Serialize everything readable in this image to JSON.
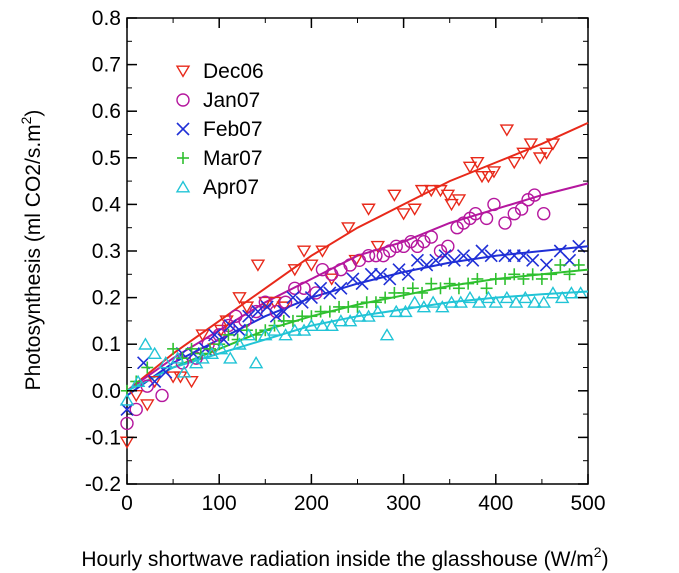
{
  "chart_data": {
    "type": "scatter",
    "title": "",
    "xlabel": "Hourly shortwave radiation inside the glasshouse (W/m",
    "xlabel_sup": "2",
    "xlabel_tail": ")",
    "ylabel": "Photosynthesis (ml CO2/s.m",
    "ylabel_sup": "2",
    "ylabel_tail": ")",
    "xlim": [
      0,
      500
    ],
    "ylim": [
      -0.2,
      0.8
    ],
    "x_ticks": [
      0,
      100,
      200,
      300,
      400,
      500
    ],
    "x_tick_labels": [
      "0",
      "100",
      "200",
      "300",
      "400",
      "500"
    ],
    "y_ticks": [
      -0.2,
      -0.1,
      0.0,
      0.1,
      0.2,
      0.3,
      0.4,
      0.5,
      0.6,
      0.7,
      0.8
    ],
    "y_tick_labels": [
      "-0.2",
      "-0.1",
      "0.0",
      "0.1",
      "0.2",
      "0.3",
      "0.4",
      "0.5",
      "0.6",
      "0.7",
      "0.8"
    ],
    "grid": false,
    "legend_position": "top-left",
    "series": [
      {
        "name": "Dec06",
        "marker": "triangle-down",
        "color": "#e8291a",
        "points": [
          [
            0,
            -0.11
          ],
          [
            10,
            -0.01
          ],
          [
            22,
            -0.03
          ],
          [
            30,
            0.02
          ],
          [
            50,
            0.03
          ],
          [
            58,
            0.03
          ],
          [
            70,
            0.02
          ],
          [
            82,
            0.12
          ],
          [
            95,
            0.09
          ],
          [
            102,
            0.13
          ],
          [
            108,
            0.15
          ],
          [
            122,
            0.2
          ],
          [
            130,
            0.18
          ],
          [
            142,
            0.27
          ],
          [
            150,
            0.19
          ],
          [
            160,
            0.19
          ],
          [
            170,
            0.18
          ],
          [
            182,
            0.26
          ],
          [
            192,
            0.3
          ],
          [
            200,
            0.27
          ],
          [
            212,
            0.3
          ],
          [
            222,
            0.24
          ],
          [
            240,
            0.35
          ],
          [
            248,
            0.28
          ],
          [
            262,
            0.39
          ],
          [
            272,
            0.31
          ],
          [
            290,
            0.42
          ],
          [
            300,
            0.38
          ],
          [
            312,
            0.39
          ],
          [
            320,
            0.43
          ],
          [
            330,
            0.43
          ],
          [
            340,
            0.43
          ],
          [
            348,
            0.42
          ],
          [
            352,
            0.4
          ],
          [
            360,
            0.41
          ],
          [
            372,
            0.48
          ],
          [
            380,
            0.49
          ],
          [
            385,
            0.46
          ],
          [
            392,
            0.46
          ],
          [
            398,
            0.47
          ],
          [
            412,
            0.56
          ],
          [
            420,
            0.49
          ],
          [
            430,
            0.51
          ],
          [
            438,
            0.53
          ],
          [
            448,
            0.5
          ],
          [
            455,
            0.51
          ],
          [
            462,
            0.53
          ]
        ]
      },
      {
        "name": "Jan07",
        "marker": "circle",
        "color": "#b5179e",
        "points": [
          [
            0,
            -0.07
          ],
          [
            10,
            -0.04
          ],
          [
            22,
            0.01
          ],
          [
            38,
            -0.01
          ],
          [
            60,
            0.06
          ],
          [
            75,
            0.07
          ],
          [
            88,
            0.1
          ],
          [
            100,
            0.12
          ],
          [
            110,
            0.14
          ],
          [
            118,
            0.16
          ],
          [
            128,
            0.15
          ],
          [
            140,
            0.17
          ],
          [
            150,
            0.19
          ],
          [
            162,
            0.17
          ],
          [
            172,
            0.19
          ],
          [
            182,
            0.22
          ],
          [
            192,
            0.22
          ],
          [
            205,
            0.21
          ],
          [
            212,
            0.26
          ],
          [
            222,
            0.25
          ],
          [
            232,
            0.26
          ],
          [
            242,
            0.27
          ],
          [
            252,
            0.28
          ],
          [
            262,
            0.29
          ],
          [
            270,
            0.29
          ],
          [
            278,
            0.29
          ],
          [
            285,
            0.3
          ],
          [
            292,
            0.31
          ],
          [
            300,
            0.31
          ],
          [
            308,
            0.32
          ],
          [
            315,
            0.31
          ],
          [
            322,
            0.32
          ],
          [
            330,
            0.33
          ],
          [
            340,
            0.3
          ],
          [
            348,
            0.31
          ],
          [
            358,
            0.35
          ],
          [
            365,
            0.36
          ],
          [
            372,
            0.37
          ],
          [
            378,
            0.38
          ],
          [
            390,
            0.37
          ],
          [
            398,
            0.4
          ],
          [
            410,
            0.36
          ],
          [
            420,
            0.38
          ],
          [
            428,
            0.39
          ],
          [
            435,
            0.41
          ],
          [
            442,
            0.42
          ],
          [
            452,
            0.38
          ]
        ]
      },
      {
        "name": "Feb07",
        "marker": "x",
        "color": "#1f2fd6",
        "points": [
          [
            0,
            -0.04
          ],
          [
            18,
            0.06
          ],
          [
            30,
            0.02
          ],
          [
            42,
            0.04
          ],
          [
            60,
            0.08
          ],
          [
            72,
            0.08
          ],
          [
            85,
            0.09
          ],
          [
            95,
            0.12
          ],
          [
            105,
            0.11
          ],
          [
            112,
            0.14
          ],
          [
            122,
            0.13
          ],
          [
            132,
            0.16
          ],
          [
            142,
            0.17
          ],
          [
            152,
            0.18
          ],
          [
            162,
            0.16
          ],
          [
            170,
            0.17
          ],
          [
            180,
            0.2
          ],
          [
            190,
            0.19
          ],
          [
            200,
            0.2
          ],
          [
            210,
            0.22
          ],
          [
            220,
            0.21
          ],
          [
            232,
            0.22
          ],
          [
            245,
            0.24
          ],
          [
            255,
            0.23
          ],
          [
            265,
            0.25
          ],
          [
            275,
            0.25
          ],
          [
            285,
            0.24
          ],
          [
            295,
            0.26
          ],
          [
            305,
            0.25
          ],
          [
            315,
            0.28
          ],
          [
            325,
            0.27
          ],
          [
            335,
            0.28
          ],
          [
            345,
            0.29
          ],
          [
            355,
            0.28
          ],
          [
            365,
            0.29
          ],
          [
            375,
            0.28
          ],
          [
            385,
            0.3
          ],
          [
            395,
            0.29
          ],
          [
            410,
            0.29
          ],
          [
            420,
            0.29
          ],
          [
            430,
            0.29
          ],
          [
            440,
            0.28
          ],
          [
            455,
            0.27
          ],
          [
            470,
            0.3
          ],
          [
            480,
            0.28
          ],
          [
            490,
            0.31
          ]
        ]
      },
      {
        "name": "Mar07",
        "marker": "plus",
        "color": "#2fc02f",
        "points": [
          [
            0,
            0.0
          ],
          [
            10,
            0.02
          ],
          [
            22,
            0.05
          ],
          [
            50,
            0.09
          ],
          [
            60,
            0.07
          ],
          [
            70,
            0.09
          ],
          [
            80,
            0.08
          ],
          [
            90,
            0.09
          ],
          [
            100,
            0.1
          ],
          [
            110,
            0.12
          ],
          [
            120,
            0.11
          ],
          [
            130,
            0.13
          ],
          [
            140,
            0.12
          ],
          [
            150,
            0.13
          ],
          [
            160,
            0.14
          ],
          [
            170,
            0.15
          ],
          [
            180,
            0.15
          ],
          [
            190,
            0.16
          ],
          [
            200,
            0.16
          ],
          [
            210,
            0.17
          ],
          [
            220,
            0.17
          ],
          [
            230,
            0.18
          ],
          [
            240,
            0.18
          ],
          [
            250,
            0.18
          ],
          [
            260,
            0.19
          ],
          [
            270,
            0.19
          ],
          [
            280,
            0.2
          ],
          [
            290,
            0.21
          ],
          [
            300,
            0.21
          ],
          [
            310,
            0.22
          ],
          [
            320,
            0.21
          ],
          [
            330,
            0.23
          ],
          [
            340,
            0.22
          ],
          [
            350,
            0.23
          ],
          [
            360,
            0.22
          ],
          [
            370,
            0.23
          ],
          [
            380,
            0.24
          ],
          [
            390,
            0.22
          ],
          [
            400,
            0.24
          ],
          [
            410,
            0.24
          ],
          [
            420,
            0.25
          ],
          [
            430,
            0.24
          ],
          [
            440,
            0.25
          ],
          [
            450,
            0.24
          ],
          [
            460,
            0.25
          ],
          [
            470,
            0.27
          ],
          [
            480,
            0.25
          ],
          [
            490,
            0.27
          ]
        ]
      },
      {
        "name": "Apr07",
        "marker": "triangle-up",
        "color": "#21c4d6",
        "points": [
          [
            0,
            -0.02
          ],
          [
            12,
            0.02
          ],
          [
            20,
            0.1
          ],
          [
            30,
            0.08
          ],
          [
            42,
            0.06
          ],
          [
            55,
            0.07
          ],
          [
            62,
            0.04
          ],
          [
            75,
            0.06
          ],
          [
            82,
            0.07
          ],
          [
            92,
            0.08
          ],
          [
            102,
            0.09
          ],
          [
            112,
            0.07
          ],
          [
            122,
            0.1
          ],
          [
            132,
            0.12
          ],
          [
            140,
            0.06
          ],
          [
            150,
            0.12
          ],
          [
            160,
            0.13
          ],
          [
            172,
            0.12
          ],
          [
            182,
            0.13
          ],
          [
            192,
            0.13
          ],
          [
            200,
            0.14
          ],
          [
            212,
            0.14
          ],
          [
            222,
            0.14
          ],
          [
            232,
            0.15
          ],
          [
            242,
            0.15
          ],
          [
            252,
            0.16
          ],
          [
            262,
            0.16
          ],
          [
            272,
            0.17
          ],
          [
            282,
            0.12
          ],
          [
            292,
            0.17
          ],
          [
            302,
            0.17
          ],
          [
            312,
            0.19
          ],
          [
            322,
            0.18
          ],
          [
            332,
            0.19
          ],
          [
            342,
            0.18
          ],
          [
            352,
            0.19
          ],
          [
            362,
            0.19
          ],
          [
            372,
            0.2
          ],
          [
            382,
            0.19
          ],
          [
            392,
            0.2
          ],
          [
            400,
            0.19
          ],
          [
            412,
            0.2
          ],
          [
            422,
            0.19
          ],
          [
            432,
            0.2
          ],
          [
            442,
            0.19
          ],
          [
            452,
            0.19
          ],
          [
            462,
            0.21
          ],
          [
            472,
            0.2
          ],
          [
            482,
            0.21
          ],
          [
            492,
            0.21
          ]
        ]
      }
    ],
    "fits": [
      {
        "series": "Dec06",
        "color": "#e8291a",
        "x": [
          0,
          50,
          100,
          150,
          200,
          250,
          300,
          350,
          400,
          450,
          500
        ],
        "y": [
          0.0,
          0.08,
          0.15,
          0.22,
          0.29,
          0.35,
          0.4,
          0.45,
          0.49,
          0.53,
          0.575
        ]
      },
      {
        "series": "Jan07",
        "color": "#b5179e",
        "x": [
          0,
          50,
          100,
          150,
          200,
          250,
          300,
          350,
          400,
          450,
          500
        ],
        "y": [
          0.0,
          0.07,
          0.13,
          0.19,
          0.24,
          0.29,
          0.32,
          0.36,
          0.39,
          0.42,
          0.445
        ]
      },
      {
        "series": "Feb07",
        "color": "#1f2fd6",
        "x": [
          0,
          50,
          100,
          150,
          200,
          250,
          300,
          350,
          400,
          450,
          500
        ],
        "y": [
          -0.01,
          0.06,
          0.11,
          0.16,
          0.2,
          0.23,
          0.255,
          0.275,
          0.29,
          0.3,
          0.31
        ]
      },
      {
        "series": "Mar07",
        "color": "#2fc02f",
        "x": [
          0,
          50,
          100,
          150,
          200,
          250,
          300,
          350,
          400,
          450,
          500
        ],
        "y": [
          0.0,
          0.05,
          0.09,
          0.13,
          0.16,
          0.185,
          0.205,
          0.225,
          0.24,
          0.25,
          0.26
        ]
      },
      {
        "series": "Apr07",
        "color": "#21c4d6",
        "x": [
          0,
          50,
          100,
          150,
          200,
          250,
          300,
          350,
          400,
          450,
          500
        ],
        "y": [
          0.0,
          0.05,
          0.08,
          0.11,
          0.14,
          0.16,
          0.175,
          0.19,
          0.2,
          0.207,
          0.213
        ]
      }
    ]
  }
}
